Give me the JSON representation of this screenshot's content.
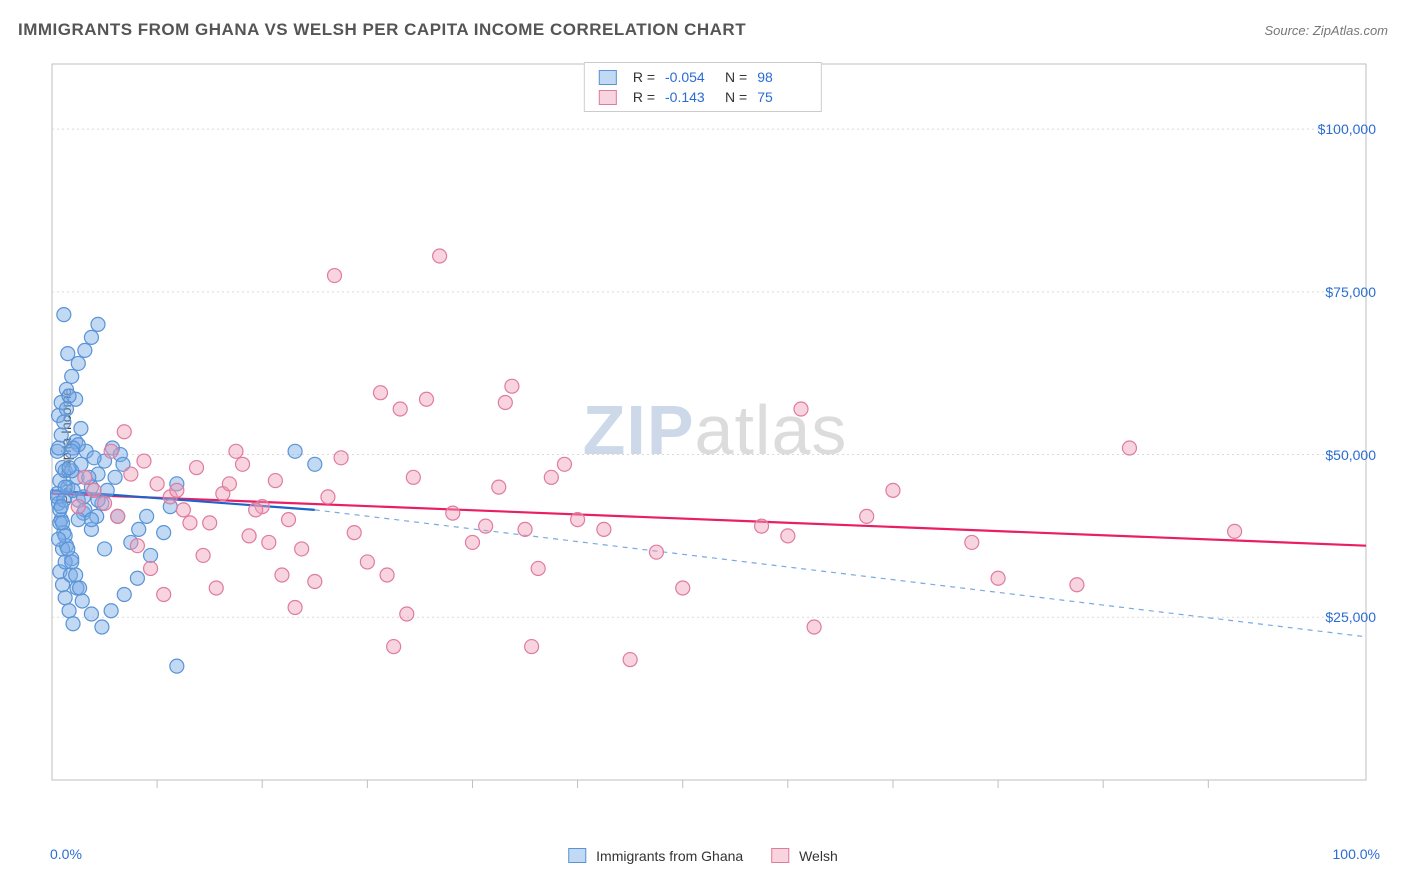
{
  "title": "IMMIGRANTS FROM GHANA VS WELSH PER CAPITA INCOME CORRELATION CHART",
  "source": "Source: ZipAtlas.com",
  "watermark_main": "ZIP",
  "watermark_rest": "atlas",
  "chart": {
    "type": "scatter",
    "ylabel": "Per Capita Income",
    "xlim": [
      0,
      100
    ],
    "ylim": [
      0,
      110000
    ],
    "x_tick_labels": {
      "min": "0.0%",
      "max": "100.0%"
    },
    "y_ticks": [
      25000,
      50000,
      75000,
      100000
    ],
    "y_tick_labels": [
      "$25,000",
      "$50,000",
      "$75,000",
      "$100,000"
    ],
    "x_minor_ticks": [
      8,
      16,
      24,
      32,
      40,
      48,
      56,
      64,
      72,
      80,
      88
    ],
    "background_color": "#ffffff",
    "grid_color": "#d9d9d9",
    "axis_color": "#bfbfbf",
    "tick_label_color": "#2b6cd4",
    "marker_radius": 7,
    "marker_stroke_width": 1.2,
    "trend_line_width": 2.2,
    "series": [
      {
        "name": "Immigrants from Ghana",
        "fill": "rgba(120,170,230,0.45)",
        "stroke": "#5a93d6",
        "trend_solid_color": "#1d63c9",
        "trend_dash_color": "#7aa9e0",
        "R": "-0.054",
        "N": "98",
        "solid_line": {
          "x1": 0,
          "y1": 44500,
          "x2": 20,
          "y2": 41500
        },
        "dash_line": {
          "x1": 20,
          "y1": 41500,
          "x2": 100,
          "y2": 22000
        },
        "points": [
          [
            0.4,
            44000
          ],
          [
            0.6,
            46000
          ],
          [
            0.8,
            48000
          ],
          [
            1.0,
            47500
          ],
          [
            1.2,
            45000
          ],
          [
            0.5,
            42500
          ],
          [
            0.7,
            40000
          ],
          [
            0.9,
            38000
          ],
          [
            1.1,
            36000
          ],
          [
            1.5,
            34000
          ],
          [
            0.6,
            32000
          ],
          [
            0.8,
            30000
          ],
          [
            1.0,
            28000
          ],
          [
            1.3,
            26000
          ],
          [
            1.6,
            24000
          ],
          [
            2.0,
            43000
          ],
          [
            2.4,
            41000
          ],
          [
            3.0,
            45000
          ],
          [
            3.5,
            47000
          ],
          [
            4.0,
            49000
          ],
          [
            4.6,
            51000
          ],
          [
            5.2,
            50000
          ],
          [
            1.8,
            52000
          ],
          [
            2.2,
            54000
          ],
          [
            0.5,
            56000
          ],
          [
            0.7,
            58000
          ],
          [
            1.1,
            60000
          ],
          [
            1.5,
            62000
          ],
          [
            2.0,
            64000
          ],
          [
            2.5,
            66000
          ],
          [
            3.0,
            68000
          ],
          [
            3.5,
            70000
          ],
          [
            0.9,
            71500
          ],
          [
            1.2,
            65500
          ],
          [
            1.8,
            58500
          ],
          [
            0.4,
            50500
          ],
          [
            0.6,
            39500
          ],
          [
            0.8,
            35500
          ],
          [
            1.0,
            33500
          ],
          [
            1.4,
            31500
          ],
          [
            1.9,
            29500
          ],
          [
            2.3,
            27500
          ],
          [
            3.0,
            25500
          ],
          [
            3.8,
            23500
          ],
          [
            4.5,
            26000
          ],
          [
            5.5,
            28500
          ],
          [
            6.5,
            31000
          ],
          [
            7.5,
            34500
          ],
          [
            8.5,
            38000
          ],
          [
            9.0,
            42000
          ],
          [
            9.5,
            45500
          ],
          [
            0.5,
            51000
          ],
          [
            0.7,
            53000
          ],
          [
            0.9,
            55000
          ],
          [
            1.1,
            57000
          ],
          [
            1.3,
            59000
          ],
          [
            1.6,
            44500
          ],
          [
            1.9,
            46500
          ],
          [
            2.2,
            48500
          ],
          [
            2.6,
            50500
          ],
          [
            3.0,
            38500
          ],
          [
            3.4,
            40500
          ],
          [
            3.8,
            42500
          ],
          [
            4.2,
            44500
          ],
          [
            4.8,
            46500
          ],
          [
            5.4,
            48500
          ],
          [
            6.0,
            36500
          ],
          [
            6.6,
            38500
          ],
          [
            7.2,
            40500
          ],
          [
            0.4,
            43500
          ],
          [
            0.6,
            41500
          ],
          [
            0.8,
            39500
          ],
          [
            1.0,
            37500
          ],
          [
            1.2,
            35500
          ],
          [
            1.5,
            33500
          ],
          [
            1.8,
            31500
          ],
          [
            2.1,
            29500
          ],
          [
            0.9,
            43000
          ],
          [
            1.5,
            47500
          ],
          [
            2.0,
            51500
          ],
          [
            2.5,
            41500
          ],
          [
            3.0,
            40000
          ],
          [
            3.5,
            43000
          ],
          [
            0.5,
            37000
          ],
          [
            0.7,
            42000
          ],
          [
            1.0,
            45000
          ],
          [
            1.3,
            48000
          ],
          [
            1.6,
            51000
          ],
          [
            2.0,
            40000
          ],
          [
            2.4,
            43500
          ],
          [
            2.8,
            46500
          ],
          [
            3.2,
            49500
          ],
          [
            1.5,
            50500
          ],
          [
            4.0,
            35500
          ],
          [
            5.0,
            40500
          ],
          [
            9.5,
            17500
          ],
          [
            18.5,
            50500
          ],
          [
            20.0,
            48500
          ]
        ]
      },
      {
        "name": "Welsh",
        "fill": "rgba(240,160,185,0.45)",
        "stroke": "#e07ba0",
        "trend_solid_color": "#e91e63",
        "R": "-0.143",
        "N": "75",
        "solid_line": {
          "x1": 0,
          "y1": 44000,
          "x2": 100,
          "y2": 36000
        },
        "points": [
          [
            2.5,
            46500
          ],
          [
            3.2,
            44500
          ],
          [
            4.0,
            42500
          ],
          [
            5.0,
            40500
          ],
          [
            6.0,
            47000
          ],
          [
            7.0,
            49000
          ],
          [
            8.0,
            45500
          ],
          [
            9.0,
            43500
          ],
          [
            10.0,
            41500
          ],
          [
            11.0,
            48000
          ],
          [
            12.0,
            39500
          ],
          [
            13.0,
            44000
          ],
          [
            14.0,
            50500
          ],
          [
            15.0,
            37500
          ],
          [
            16.0,
            42000
          ],
          [
            17.0,
            46000
          ],
          [
            18.0,
            40000
          ],
          [
            19.0,
            35500
          ],
          [
            20.0,
            30500
          ],
          [
            21.0,
            43500
          ],
          [
            22.0,
            49500
          ],
          [
            23.0,
            38000
          ],
          [
            24.0,
            33500
          ],
          [
            25.5,
            31500
          ],
          [
            26.5,
            57000
          ],
          [
            27.5,
            46500
          ],
          [
            28.5,
            58500
          ],
          [
            29.5,
            80500
          ],
          [
            21.5,
            77500
          ],
          [
            30.5,
            41000
          ],
          [
            32.0,
            36500
          ],
          [
            33.0,
            39000
          ],
          [
            34.0,
            45000
          ],
          [
            35.0,
            60500
          ],
          [
            36.0,
            38500
          ],
          [
            37.0,
            32500
          ],
          [
            38.0,
            46500
          ],
          [
            39.0,
            48500
          ],
          [
            40.0,
            40000
          ],
          [
            42.0,
            38500
          ],
          [
            44.0,
            18500
          ],
          [
            46.0,
            35000
          ],
          [
            48.0,
            29500
          ],
          [
            36.5,
            20500
          ],
          [
            26.0,
            20500
          ],
          [
            27.0,
            25500
          ],
          [
            4.5,
            50500
          ],
          [
            5.5,
            53500
          ],
          [
            6.5,
            36000
          ],
          [
            7.5,
            32500
          ],
          [
            8.5,
            28500
          ],
          [
            9.5,
            44500
          ],
          [
            10.5,
            39500
          ],
          [
            11.5,
            34500
          ],
          [
            12.5,
            29500
          ],
          [
            13.5,
            45500
          ],
          [
            14.5,
            48500
          ],
          [
            15.5,
            41500
          ],
          [
            16.5,
            36500
          ],
          [
            17.5,
            31500
          ],
          [
            18.5,
            26500
          ],
          [
            54.0,
            39000
          ],
          [
            56.0,
            37500
          ],
          [
            58.0,
            23500
          ],
          [
            57.0,
            57000
          ],
          [
            62.0,
            40500
          ],
          [
            64.0,
            44500
          ],
          [
            70.0,
            36500
          ],
          [
            72.0,
            31000
          ],
          [
            90.0,
            38200
          ],
          [
            78.0,
            30000
          ],
          [
            82.0,
            51000
          ],
          [
            25.0,
            59500
          ],
          [
            34.5,
            58000
          ],
          [
            2.0,
            42000
          ]
        ]
      }
    ]
  },
  "legend_top": {
    "R_label": "R =",
    "N_label": "N ="
  },
  "legend_bottom_sep": " "
}
